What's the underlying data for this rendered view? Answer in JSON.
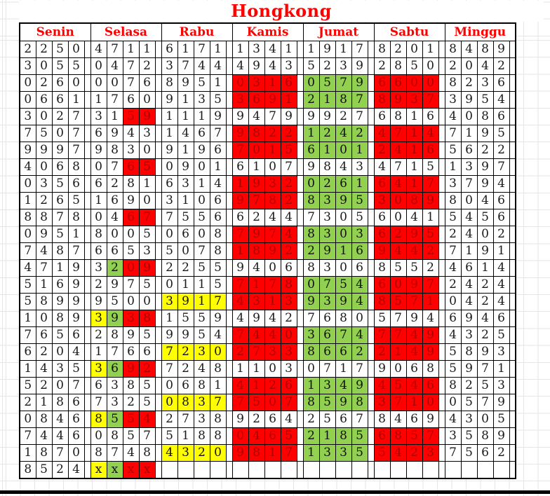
{
  "title": "Hongkong",
  "colors": {
    "accent_red": "#ff0000",
    "red_fill": "#ff0000",
    "red_digit_text": "#aa0000",
    "green_fill": "#92d050",
    "yellow_fill": "#ffff00",
    "digit_text": "#1a1a1a",
    "grid_border": "#000000"
  },
  "columns": [
    {
      "day": "Senin",
      "cells": [
        [
          "2250",
          "WWWW"
        ],
        [
          "3055",
          "WWWW"
        ],
        [
          "0260",
          "WWWW"
        ],
        [
          "0661",
          "WWWW"
        ],
        [
          "3027",
          "WWWW"
        ],
        [
          "7507",
          "WWWW"
        ],
        [
          "9997",
          "WWWW"
        ],
        [
          "4068",
          "WWWW"
        ],
        [
          "0356",
          "WWWW"
        ],
        [
          "1265",
          "WWWW"
        ],
        [
          "8878",
          "WWWW"
        ],
        [
          "0951",
          "WWWW"
        ],
        [
          "7487",
          "WWWW"
        ],
        [
          "4719",
          "WWWW"
        ],
        [
          "5169",
          "WWWW"
        ],
        [
          "5899",
          "WWWW"
        ],
        [
          "1089",
          "WWWW"
        ],
        [
          "7656",
          "WWWW"
        ],
        [
          "6204",
          "WWWW"
        ],
        [
          "1435",
          "WWWW"
        ],
        [
          "5207",
          "WWWW"
        ],
        [
          "2186",
          "WWWW"
        ],
        [
          "0846",
          "WWWW"
        ],
        [
          "7446",
          "WWWW"
        ],
        [
          "1870",
          "WWWW"
        ],
        [
          "8524",
          "WWWW"
        ]
      ]
    },
    {
      "day": "Selasa",
      "cells": [
        [
          "4711",
          "WWWW"
        ],
        [
          "0472",
          "WWWW"
        ],
        [
          "0076",
          "WWWW"
        ],
        [
          "1760",
          "WWWW"
        ],
        [
          "3159",
          "WWRR"
        ],
        [
          "6943",
          "WWWW"
        ],
        [
          "9830",
          "WWWW"
        ],
        [
          "0765",
          "WWRR"
        ],
        [
          "6281",
          "WWWW"
        ],
        [
          "1690",
          "WWWW"
        ],
        [
          "0467",
          "WWRR"
        ],
        [
          "8005",
          "WWWW"
        ],
        [
          "6653",
          "WWWW"
        ],
        [
          "3209",
          "WGRR"
        ],
        [
          "2975",
          "WWWW"
        ],
        [
          "9500",
          "WWWW"
        ],
        [
          "3938",
          "YGRR"
        ],
        [
          "2895",
          "WWWW"
        ],
        [
          "1766",
          "WWWW"
        ],
        [
          "3692",
          "YGRR"
        ],
        [
          "6385",
          "WWWW"
        ],
        [
          "7325",
          "WWWW"
        ],
        [
          "8554",
          "YGRR"
        ],
        [
          "0857",
          "WWWW"
        ],
        [
          "8748",
          "WWWW"
        ],
        [
          "xxxx",
          "YGRR"
        ]
      ]
    },
    {
      "day": "Rabu",
      "cells": [
        [
          "6171",
          "WWWW"
        ],
        [
          "3744",
          "WWWW"
        ],
        [
          "8951",
          "WWWW"
        ],
        [
          "9135",
          "WWWW"
        ],
        [
          "1119",
          "WWWW"
        ],
        [
          "1467",
          "WWWW"
        ],
        [
          "9196",
          "WWWW"
        ],
        [
          "0901",
          "WWWW"
        ],
        [
          "6314",
          "WWWW"
        ],
        [
          "3106",
          "WWWW"
        ],
        [
          "7556",
          "WWWW"
        ],
        [
          "0608",
          "WWWW"
        ],
        [
          "5078",
          "WWWW"
        ],
        [
          "2255",
          "WWWW"
        ],
        [
          "0115",
          "WWWW"
        ],
        [
          "3917",
          "YYYY"
        ],
        [
          "1559",
          "WWWW"
        ],
        [
          "9954",
          "WWWW"
        ],
        [
          "7230",
          "YYYY"
        ],
        [
          "7248",
          "WWWW"
        ],
        [
          "0681",
          "WWWW"
        ],
        [
          "0837",
          "YYYY"
        ],
        [
          "2738",
          "WWWW"
        ],
        [
          "5188",
          "WWWW"
        ],
        [
          "4320",
          "YYYY"
        ],
        [
          "",
          "WWWW"
        ]
      ]
    },
    {
      "day": "Kamis",
      "cells": [
        [
          "1341",
          "WWWW"
        ],
        [
          "4943",
          "WWWW"
        ],
        [
          "0316",
          "RRRR"
        ],
        [
          "3691",
          "RRRR"
        ],
        [
          "9479",
          "WWWW"
        ],
        [
          "9822",
          "RRRR"
        ],
        [
          "7015",
          "RRRR"
        ],
        [
          "6107",
          "WWWW"
        ],
        [
          "1932",
          "RRRR"
        ],
        [
          "9782",
          "RRRR"
        ],
        [
          "6244",
          "WWWW"
        ],
        [
          "7974",
          "RRRR"
        ],
        [
          "1892",
          "RRRR"
        ],
        [
          "9406",
          "WWWW"
        ],
        [
          "7178",
          "RRRR"
        ],
        [
          "4313",
          "RRRR"
        ],
        [
          "4942",
          "WWWW"
        ],
        [
          "7440",
          "RRRR"
        ],
        [
          "2733",
          "RRRR"
        ],
        [
          "1103",
          "WWWW"
        ],
        [
          "4126",
          "RRRR"
        ],
        [
          "7507",
          "RRRR"
        ],
        [
          "9264",
          "WWWW"
        ],
        [
          "0465",
          "RRRR"
        ],
        [
          "9817",
          "RRRR"
        ],
        [
          "",
          "WWWW"
        ]
      ]
    },
    {
      "day": "Jumat",
      "cells": [
        [
          "1917",
          "WWWW"
        ],
        [
          "5239",
          "WWWW"
        ],
        [
          "0579",
          "GGGG"
        ],
        [
          "2187",
          "GGGG"
        ],
        [
          "9927",
          "WWWW"
        ],
        [
          "1242",
          "GGGG"
        ],
        [
          "6101",
          "GGGG"
        ],
        [
          "9843",
          "WWWW"
        ],
        [
          "0261",
          "GGGG"
        ],
        [
          "8395",
          "GGGG"
        ],
        [
          "7305",
          "WWWW"
        ],
        [
          "8303",
          "GGGG"
        ],
        [
          "2916",
          "GGGG"
        ],
        [
          "8306",
          "WWWW"
        ],
        [
          "0754",
          "GGGG"
        ],
        [
          "9394",
          "GGGG"
        ],
        [
          "7680",
          "WWWW"
        ],
        [
          "3674",
          "GGGG"
        ],
        [
          "8662",
          "GGGG"
        ],
        [
          "0717",
          "WWWW"
        ],
        [
          "1349",
          "GGGG"
        ],
        [
          "8598",
          "GGGG"
        ],
        [
          "2567",
          "WWWW"
        ],
        [
          "2185",
          "GGGG"
        ],
        [
          "1335",
          "GGGG"
        ],
        [
          "",
          "WWWW"
        ]
      ]
    },
    {
      "day": "Sabtu",
      "cells": [
        [
          "8201",
          "WWWW"
        ],
        [
          "2850",
          "WWWW"
        ],
        [
          "6600",
          "RRRR"
        ],
        [
          "8937",
          "RRRR"
        ],
        [
          "6816",
          "WWWW"
        ],
        [
          "4714",
          "RRRR"
        ],
        [
          "2416",
          "RRRR"
        ],
        [
          "4715",
          "WWWW"
        ],
        [
          "6417",
          "RRRR"
        ],
        [
          "3089",
          "RRRR"
        ],
        [
          "6041",
          "WWWW"
        ],
        [
          "6295",
          "RRRR"
        ],
        [
          "9442",
          "RRRR"
        ],
        [
          "8552",
          "WWWW"
        ],
        [
          "6097",
          "RRRR"
        ],
        [
          "8571",
          "RRRR"
        ],
        [
          "5794",
          "WWWW"
        ],
        [
          "7749",
          "RRRR"
        ],
        [
          "2149",
          "RRRR"
        ],
        [
          "9068",
          "WWWW"
        ],
        [
          "4546",
          "RRRR"
        ],
        [
          "3710",
          "RRRR"
        ],
        [
          "8469",
          "WWWW"
        ],
        [
          "6857",
          "RRRR"
        ],
        [
          "5423",
          "RRRR"
        ],
        [
          "",
          "WWWW"
        ]
      ]
    },
    {
      "day": "Minggu",
      "cells": [
        [
          "8489",
          "WWWW"
        ],
        [
          "2042",
          "WWWW"
        ],
        [
          "8236",
          "WWWW"
        ],
        [
          "3954",
          "WWWW"
        ],
        [
          "4086",
          "WWWW"
        ],
        [
          "7195",
          "WWWW"
        ],
        [
          "5622",
          "WWWW"
        ],
        [
          "1397",
          "WWWW"
        ],
        [
          "3794",
          "WWWW"
        ],
        [
          "8046",
          "WWWW"
        ],
        [
          "5456",
          "WWWW"
        ],
        [
          "2402",
          "WWWW"
        ],
        [
          "7191",
          "WWWW"
        ],
        [
          "4614",
          "WWWW"
        ],
        [
          "2424",
          "WWWW"
        ],
        [
          "0424",
          "WWWW"
        ],
        [
          "6946",
          "WWWW"
        ],
        [
          "4325",
          "WWWW"
        ],
        [
          "5893",
          "WWWW"
        ],
        [
          "5971",
          "WWWW"
        ],
        [
          "8253",
          "WWWW"
        ],
        [
          "0579",
          "WWWW"
        ],
        [
          "4305",
          "WWWW"
        ],
        [
          "3589",
          "WWWW"
        ],
        [
          "7562",
          "WWWW"
        ],
        [
          "",
          "WWWW"
        ]
      ]
    }
  ]
}
